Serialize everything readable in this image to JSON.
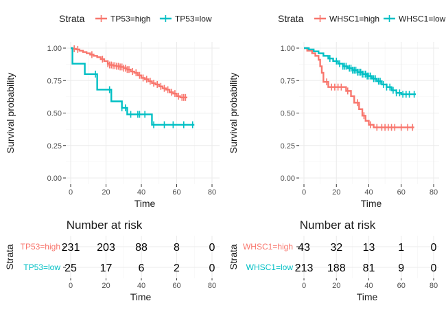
{
  "colors": {
    "high": "#F8766D",
    "low": "#00BFC4",
    "grid": "#EBEBEB",
    "text": "#1A1A1A",
    "axis_text": "#4D4D4D"
  },
  "chart_data": [
    {
      "type": "line",
      "subtype": "kaplan-meier",
      "legend": {
        "title": "Strata",
        "position": "top",
        "entries": [
          "TP53=high",
          "TP53=low"
        ]
      },
      "xlabel": "Time",
      "ylabel": "Survival probability",
      "xlim": [
        0,
        80
      ],
      "ylim": [
        0,
        1
      ],
      "xticks": [
        0,
        20,
        40,
        60,
        80
      ],
      "yticks": [
        0,
        0.25,
        0.5,
        0.75,
        1
      ],
      "ytick_labels": [
        "0.00",
        "0.25",
        "0.50",
        "0.75",
        "1.00"
      ],
      "grid": true,
      "series": [
        {
          "name": "TP53=high",
          "color_key": "high",
          "x": [
            0,
            1,
            3,
            5,
            7,
            9,
            11,
            13,
            15,
            17,
            19,
            21,
            22,
            24,
            26,
            28,
            30,
            32,
            34,
            36,
            38,
            40,
            42,
            44,
            46,
            48,
            50,
            52,
            54,
            56,
            58,
            60,
            62,
            66
          ],
          "y": [
            1.0,
            0.995,
            0.99,
            0.98,
            0.97,
            0.96,
            0.95,
            0.94,
            0.93,
            0.915,
            0.9,
            0.88,
            0.87,
            0.865,
            0.86,
            0.855,
            0.845,
            0.835,
            0.82,
            0.81,
            0.79,
            0.77,
            0.76,
            0.745,
            0.73,
            0.72,
            0.705,
            0.69,
            0.68,
            0.66,
            0.65,
            0.63,
            0.62,
            0.62
          ],
          "censored": [
            2,
            4,
            12,
            18,
            21,
            22,
            23,
            24,
            25,
            26,
            27,
            28,
            29,
            30,
            31,
            32,
            33,
            35,
            37,
            39,
            41,
            43,
            45,
            47,
            49,
            51,
            53,
            55,
            57,
            59,
            61,
            63,
            64,
            65
          ]
        },
        {
          "name": "TP53=low",
          "color_key": "low",
          "x": [
            0,
            1,
            8,
            15,
            23,
            29,
            32,
            46,
            70
          ],
          "y": [
            1.0,
            0.88,
            0.8,
            0.68,
            0.59,
            0.54,
            0.49,
            0.41,
            0.41
          ],
          "censored": [
            14,
            22,
            29,
            31,
            34,
            38,
            39,
            42,
            47,
            53,
            58,
            64,
            69
          ]
        }
      ],
      "risk_table": {
        "title": "Number at risk",
        "ylabel": "Strata",
        "xlabel": "Time",
        "time_points": [
          0,
          20,
          40,
          60,
          80
        ],
        "rows": [
          {
            "label": "TP53=high",
            "color_key": "high",
            "values": [
              "231",
              "203",
              "88",
              "8",
              "0"
            ]
          },
          {
            "label": "TP53=low",
            "color_key": "low",
            "values": [
              "25",
              "17",
              "6",
              "2",
              "0"
            ]
          }
        ]
      }
    },
    {
      "type": "line",
      "subtype": "kaplan-meier",
      "legend": {
        "title": "Strata",
        "position": "top",
        "entries": [
          "WHSC1=high",
          "WHSC1=low"
        ]
      },
      "xlabel": "Time",
      "ylabel": "Survival probability",
      "xlim": [
        0,
        80
      ],
      "ylim": [
        0,
        1
      ],
      "xticks": [
        0,
        20,
        40,
        60,
        80
      ],
      "yticks": [
        0,
        0.25,
        0.5,
        0.75,
        1
      ],
      "ytick_labels": [
        "0.00",
        "0.25",
        "0.50",
        "0.75",
        "1.00"
      ],
      "grid": true,
      "series": [
        {
          "name": "WHSC1=high",
          "color_key": "high",
          "x": [
            0,
            2,
            5,
            7,
            9,
            10,
            11,
            12,
            15,
            20,
            26,
            29,
            31,
            34,
            36,
            38,
            40,
            43,
            48,
            68
          ],
          "y": [
            1.0,
            0.98,
            0.96,
            0.94,
            0.91,
            0.86,
            0.81,
            0.74,
            0.7,
            0.7,
            0.67,
            0.63,
            0.58,
            0.53,
            0.48,
            0.44,
            0.41,
            0.39,
            0.39,
            0.39
          ],
          "censored": [
            14,
            17,
            19,
            21,
            23,
            27,
            33,
            37,
            41,
            45,
            48,
            50,
            52,
            54,
            56,
            60,
            64,
            67
          ]
        },
        {
          "name": "WHSC1=low",
          "color_key": "low",
          "x": [
            0,
            3,
            6,
            9,
            12,
            15,
            18,
            21,
            24,
            27,
            30,
            33,
            36,
            39,
            42,
            45,
            48,
            51,
            54,
            57,
            60,
            69
          ],
          "y": [
            1.0,
            0.99,
            0.975,
            0.96,
            0.94,
            0.92,
            0.9,
            0.88,
            0.86,
            0.845,
            0.83,
            0.815,
            0.8,
            0.785,
            0.765,
            0.745,
            0.72,
            0.7,
            0.675,
            0.655,
            0.645,
            0.645
          ],
          "censored": [
            16,
            20,
            22,
            24,
            25,
            26,
            28,
            29,
            30,
            31,
            32,
            33,
            34,
            35,
            36,
            37,
            38,
            39,
            40,
            41,
            43,
            44,
            46,
            47,
            49,
            51,
            53,
            55,
            57,
            59,
            61,
            63,
            65,
            68
          ]
        }
      ],
      "risk_table": {
        "title": "Number at risk",
        "ylabel": "Strata",
        "xlabel": "Time",
        "time_points": [
          0,
          20,
          40,
          60,
          80
        ],
        "rows": [
          {
            "label": "WHSC1=high",
            "color_key": "high",
            "values": [
              "43",
              "32",
              "13",
              "1",
              "0"
            ]
          },
          {
            "label": "WHSC1=low",
            "color_key": "low",
            "values": [
              "213",
              "188",
              "81",
              "9",
              "0"
            ]
          }
        ]
      }
    }
  ]
}
